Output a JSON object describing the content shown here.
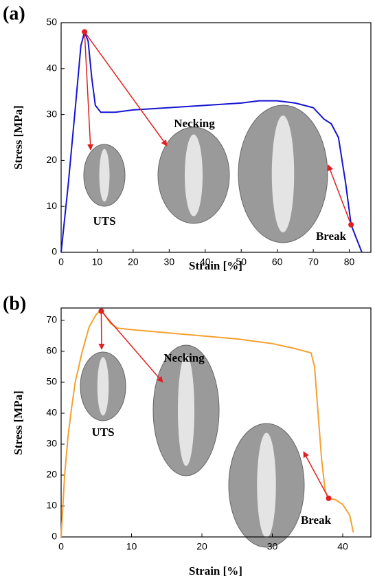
{
  "chart_data": [
    {
      "type": "line",
      "panel_label": "(a)",
      "x_label": "Strain [%]",
      "y_label": "Stress [MPa]",
      "xlim": [
        0,
        86
      ],
      "ylim": [
        0,
        50
      ],
      "xticks": [
        0,
        10,
        20,
        30,
        40,
        50,
        60,
        70,
        80
      ],
      "yticks": [
        0,
        10,
        20,
        30,
        40,
        50
      ],
      "color": "#1414d2",
      "x": [
        0,
        2,
        4,
        5.5,
        6.5,
        7.5,
        8.5,
        9.5,
        11,
        15,
        20,
        30,
        40,
        50,
        55,
        60,
        65,
        70,
        73,
        75,
        77,
        79,
        80.5,
        82,
        83.5
      ],
      "values": [
        0,
        15,
        32,
        45,
        48,
        46,
        38,
        32,
        30.5,
        30.5,
        31,
        31.5,
        32,
        32.5,
        33,
        33,
        32.5,
        31.5,
        29,
        28,
        25,
        15,
        6,
        3,
        0
      ],
      "markers": [
        {
          "x": 6.5,
          "y": 48
        },
        {
          "x": 80.5,
          "y": 6
        }
      ],
      "annotations": [
        "UTS",
        "Necking",
        "Break"
      ]
    },
    {
      "type": "line",
      "panel_label": "(b)",
      "x_label": "Strain [%]",
      "y_label": "Stress [MPa]",
      "xlim": [
        0,
        44
      ],
      "ylim": [
        0,
        74
      ],
      "xticks": [
        0,
        10,
        20,
        30,
        40
      ],
      "yticks": [
        0,
        10,
        20,
        30,
        40,
        50,
        60,
        70
      ],
      "color": "#f5a030",
      "x": [
        0,
        0.5,
        1,
        1.5,
        2,
        3,
        4,
        5,
        5.5,
        6,
        7,
        8,
        10,
        15,
        20,
        25,
        30,
        33,
        35.5,
        36,
        36.5,
        37,
        37.5,
        38,
        39,
        40,
        41,
        41.5
      ],
      "values": [
        0,
        20,
        33,
        42,
        50,
        60,
        68,
        72,
        73,
        72.5,
        69,
        67.5,
        67,
        66,
        65,
        64,
        62.5,
        61,
        59.5,
        55,
        40,
        25,
        15,
        12.5,
        12,
        10.5,
        7,
        1.5
      ],
      "markers": [
        {
          "x": 5.7,
          "y": 73
        },
        {
          "x": 38,
          "y": 12.5
        }
      ],
      "annotations": [
        "UTS",
        "Necking",
        "Break"
      ]
    }
  ]
}
